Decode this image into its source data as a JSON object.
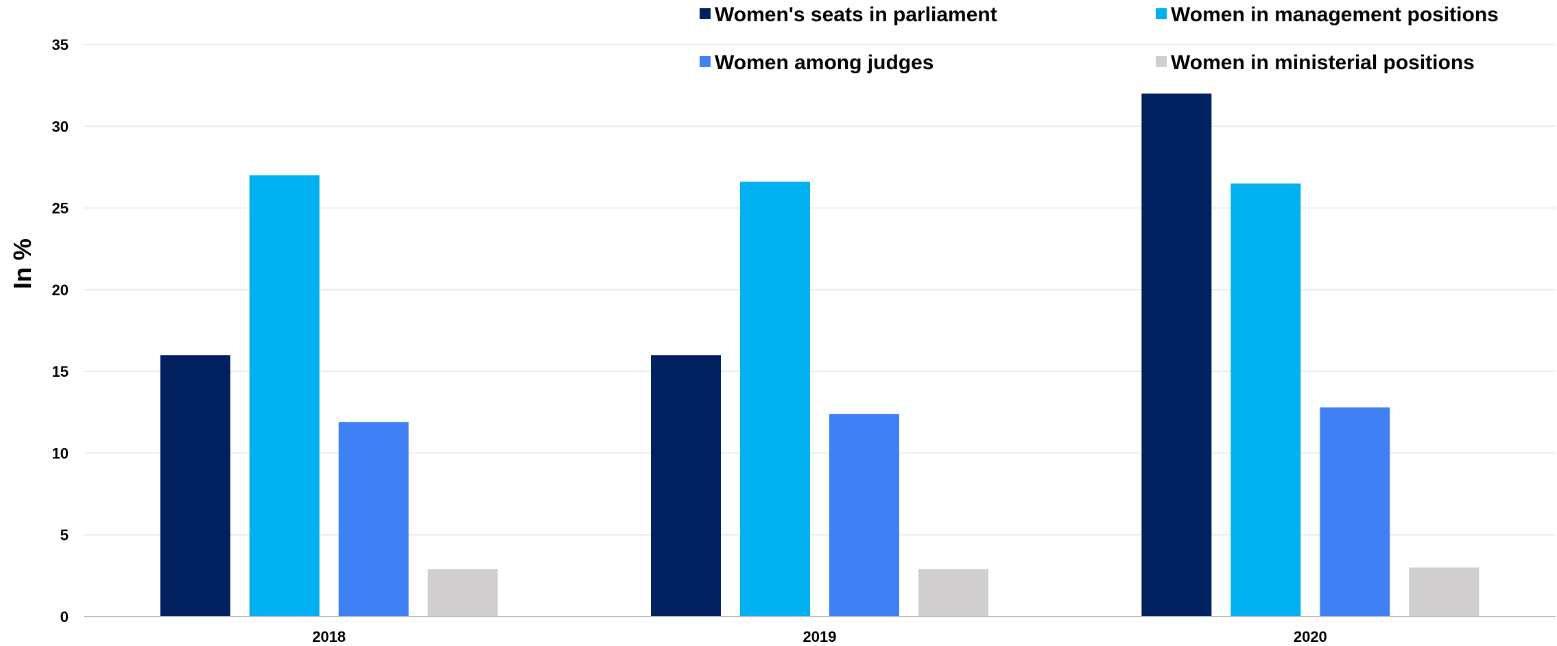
{
  "chart_data": {
    "type": "bar",
    "title": "",
    "xlabel": "",
    "ylabel": "In %",
    "ylim": [
      0,
      35
    ],
    "yticks": [
      0,
      5,
      10,
      15,
      20,
      25,
      30,
      35
    ],
    "grid": true,
    "legend_position": "top-right",
    "categories": [
      "2018",
      "2019",
      "2020"
    ],
    "series": [
      {
        "name": "Women's seats in parliament",
        "color": "#002060",
        "values": [
          16.0,
          16.0,
          32.0
        ]
      },
      {
        "name": "Women in management positions",
        "color": "#00B0F0",
        "values": [
          27.0,
          26.6,
          26.5
        ]
      },
      {
        "name": "Women among judges",
        "color": "#4080F5",
        "values": [
          11.9,
          12.4,
          12.8
        ]
      },
      {
        "name": "Women in ministerial positions",
        "color": "#D0CECE",
        "values": [
          2.9,
          2.9,
          3.0
        ]
      }
    ]
  }
}
